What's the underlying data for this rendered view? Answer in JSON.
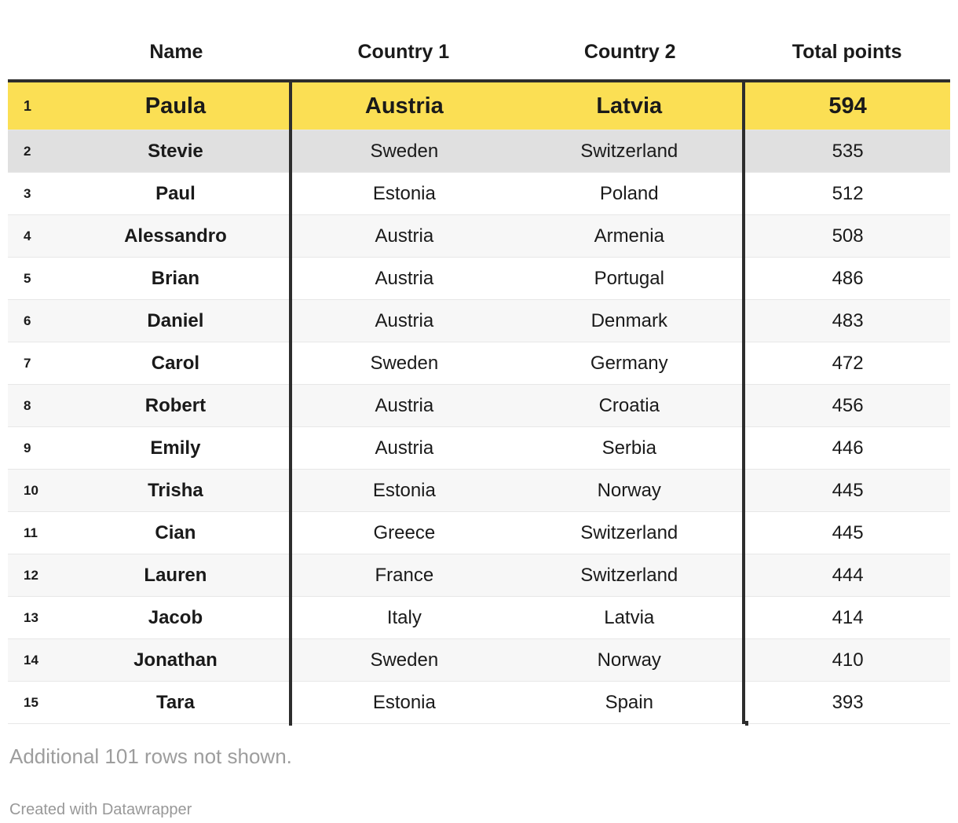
{
  "chart_data": {
    "type": "table",
    "title": "",
    "columns": [
      "Name",
      "Country 1",
      "Country 2",
      "Total points"
    ],
    "rank_column_header": "",
    "rows": [
      {
        "rank": 1,
        "name": "Paula",
        "country1": "Austria",
        "country2": "Latvia",
        "points": 594,
        "highlight": "yellow"
      },
      {
        "rank": 2,
        "name": "Stevie",
        "country1": "Sweden",
        "country2": "Switzerland",
        "points": 535,
        "highlight": "gray"
      },
      {
        "rank": 3,
        "name": "Paul",
        "country1": "Estonia",
        "country2": "Poland",
        "points": 512
      },
      {
        "rank": 4,
        "name": "Alessandro",
        "country1": "Austria",
        "country2": "Armenia",
        "points": 508
      },
      {
        "rank": 5,
        "name": "Brian",
        "country1": "Austria",
        "country2": "Portugal",
        "points": 486
      },
      {
        "rank": 6,
        "name": "Daniel",
        "country1": "Austria",
        "country2": "Denmark",
        "points": 483
      },
      {
        "rank": 7,
        "name": "Carol",
        "country1": "Sweden",
        "country2": "Germany",
        "points": 472
      },
      {
        "rank": 8,
        "name": "Robert",
        "country1": "Austria",
        "country2": "Croatia",
        "points": 456
      },
      {
        "rank": 9,
        "name": "Emily",
        "country1": "Austria",
        "country2": "Serbia",
        "points": 446
      },
      {
        "rank": 10,
        "name": "Trisha",
        "country1": "Estonia",
        "country2": "Norway",
        "points": 445
      },
      {
        "rank": 11,
        "name": "Cian",
        "country1": "Greece",
        "country2": "Switzerland",
        "points": 445
      },
      {
        "rank": 12,
        "name": "Lauren",
        "country1": "France",
        "country2": "Switzerland",
        "points": 444
      },
      {
        "rank": 13,
        "name": "Jacob",
        "country1": "Italy",
        "country2": "Latvia",
        "points": 414
      },
      {
        "rank": 14,
        "name": "Jonathan",
        "country1": "Sweden",
        "country2": "Norway",
        "points": 410
      },
      {
        "rank": 15,
        "name": "Tara",
        "country1": "Estonia",
        "country2": "Spain",
        "points": 393
      }
    ]
  },
  "footer": {
    "note": "Additional 101 rows not shown.",
    "attribution": "Created with Datawrapper"
  },
  "colors": {
    "highlight_yellow": "#FBDF54",
    "highlight_gray": "#E0E0E0",
    "stripe_gray": "#F7F7F7",
    "divider_dark": "#2D2D2D",
    "row_border": "#E7E7E7",
    "text": "#1A1A1A",
    "muted_text": "#9D9D9D"
  }
}
